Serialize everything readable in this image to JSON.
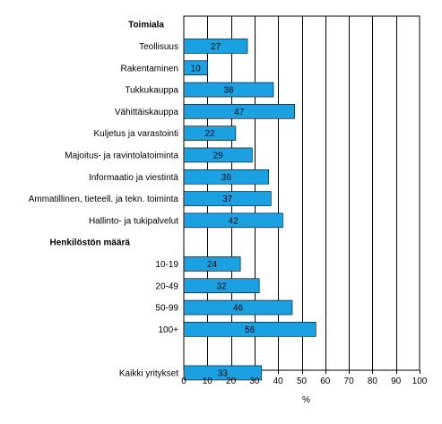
{
  "chart_data": {
    "type": "bar",
    "orientation": "horizontal",
    "xlabel": "%",
    "xlim": [
      0,
      100
    ],
    "xticks": [
      0,
      10,
      20,
      30,
      40,
      50,
      60,
      70,
      80,
      90,
      100
    ],
    "grid": "vertical",
    "bar_color": "#1BA1E2",
    "groups": [
      {
        "heading": "Toimiala",
        "categories": [
          "Teollisuus",
          "Rakentaminen",
          "Tukkukauppa",
          "Vähittäiskauppa",
          "Kuljetus ja varastointi",
          "Majoitus- ja ravintolatoiminta",
          "Informaatio ja viestintä",
          "Ammatillinen, tieteell. ja tekn. toiminta",
          "Hallinto- ja tukipalvelut"
        ],
        "values": [
          27,
          10,
          38,
          47,
          22,
          29,
          36,
          37,
          42
        ]
      },
      {
        "heading": "Henkilöstön määrä",
        "categories": [
          "10-19",
          "20-49",
          "50-99",
          "100+"
        ],
        "values": [
          24,
          32,
          46,
          56
        ]
      },
      {
        "heading": "",
        "categories": [
          "Kaikki yritykset"
        ],
        "values": [
          33
        ]
      }
    ]
  }
}
